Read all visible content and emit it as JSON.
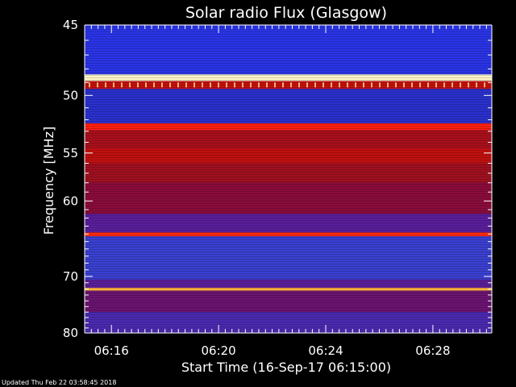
{
  "chart_data": {
    "type": "heatmap",
    "title": "Solar radio Flux (Glasgow)",
    "xlabel": "Start Time (16-Sep-17 06:15:00)",
    "ylabel": "Frequency [MHz]",
    "x_ticks": [
      {
        "minutes": 1,
        "label": "06:16"
      },
      {
        "minutes": 5,
        "label": "06:20"
      },
      {
        "minutes": 9,
        "label": "06:24"
      },
      {
        "minutes": 13,
        "label": "06:28"
      }
    ],
    "xlim_minutes": [
      0,
      15.2
    ],
    "ylim": [
      80,
      45
    ],
    "y_ticks": [
      45,
      50,
      55,
      60,
      70,
      80
    ],
    "y_axis_scale": "reciprocal",
    "colormap": [
      "#00008c",
      "#2a1fd8",
      "#4a55e0",
      "#5a1a9a",
      "#8a0a4a",
      "#c40a0a",
      "#ff2a0a",
      "#ffb03c",
      "#fff6c8"
    ],
    "frequency_bands": [
      {
        "from": 45.0,
        "to": 48.4,
        "color": "#2a34e6",
        "level": "low"
      },
      {
        "from": 48.4,
        "to": 48.9,
        "color": "#fff6c8",
        "level": "very high"
      },
      {
        "from": 48.9,
        "to": 49.5,
        "color": "#c41010",
        "level": "high"
      },
      {
        "from": 49.5,
        "to": 52.3,
        "color": "#2a30cc",
        "level": "low"
      },
      {
        "from": 52.3,
        "to": 52.9,
        "color": "#ff2010",
        "level": "high"
      },
      {
        "from": 52.9,
        "to": 54.5,
        "color": "#a8101c",
        "level": "medium-high"
      },
      {
        "from": 54.5,
        "to": 56.0,
        "color": "#c01010",
        "level": "high"
      },
      {
        "from": 56.0,
        "to": 58.0,
        "color": "#a01020",
        "level": "medium-high"
      },
      {
        "from": 58.0,
        "to": 61.5,
        "color": "#8a0c3a",
        "level": "medium"
      },
      {
        "from": 61.5,
        "to": 63.8,
        "color": "#5a1e9a",
        "level": "medium-low"
      },
      {
        "from": 63.8,
        "to": 64.3,
        "color": "#ff2a0a",
        "level": "high"
      },
      {
        "from": 64.3,
        "to": 70.5,
        "color": "#3a40d0",
        "level": "low"
      },
      {
        "from": 70.5,
        "to": 71.8,
        "color": "#5a1e9a",
        "level": "medium-low"
      },
      {
        "from": 71.8,
        "to": 72.3,
        "color": "#ffb03c",
        "level": "very high"
      },
      {
        "from": 72.3,
        "to": 76.0,
        "color": "#6a1470",
        "level": "medium"
      },
      {
        "from": 76.0,
        "to": 80.0,
        "color": "#4a2ab0",
        "level": "medium-low"
      }
    ]
  },
  "footer": {
    "updated": "Updated Thu Feb 22 03:58:45 2018"
  }
}
